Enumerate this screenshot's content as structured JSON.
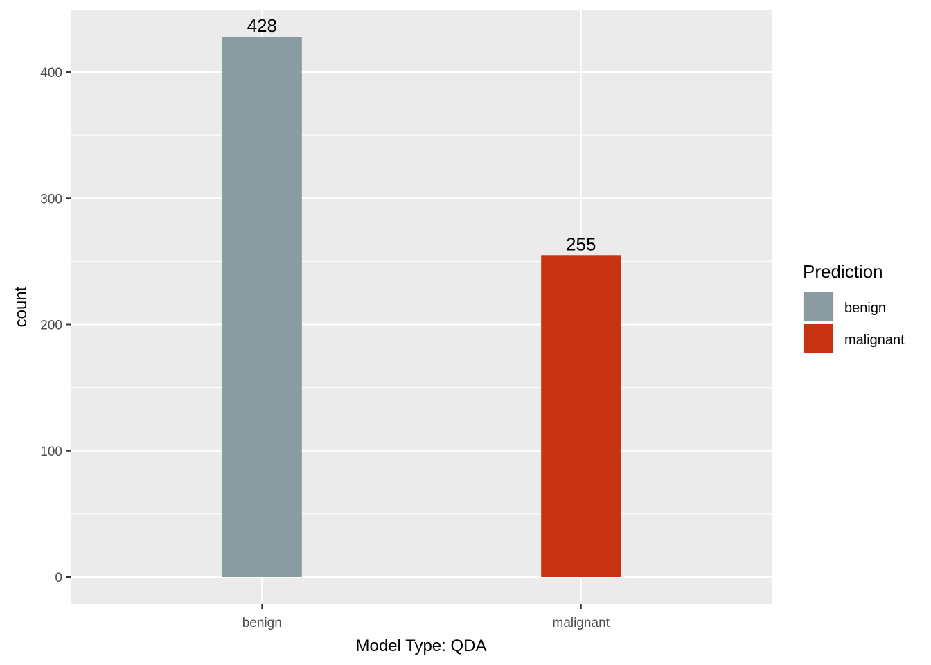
{
  "chart_data": {
    "type": "bar",
    "categories": [
      "benign",
      "malignant"
    ],
    "values": [
      428,
      255
    ],
    "data_labels": [
      "428",
      "255"
    ],
    "colors": [
      "#8A9BA2",
      "#C83312"
    ],
    "xlabel": "Model Type:  QDA",
    "ylabel": "count",
    "ylim": [
      -21.4,
      449.4
    ],
    "yticks": [
      0,
      100,
      200,
      300,
      400
    ],
    "grid": true,
    "panel_background": "#EBEBEB",
    "grid_color": "#FFFFFF",
    "legend": {
      "title": "Prediction",
      "position": "right",
      "entries": [
        "benign",
        "malignant"
      ]
    }
  }
}
